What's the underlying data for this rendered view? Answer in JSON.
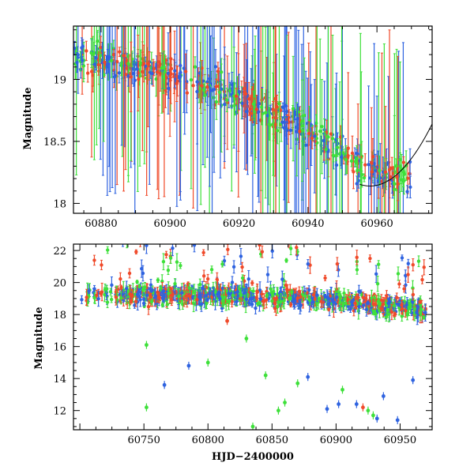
{
  "chart_data": [
    {
      "type": "scatter",
      "title": "",
      "xlabel": "",
      "ylabel": "Magnitude",
      "xlim": [
        60872,
        60976
      ],
      "ylim": [
        19.43,
        17.92
      ],
      "y_inverted": true,
      "xticks": [
        60880,
        60900,
        60920,
        60940,
        60960
      ],
      "xtick_labels": [
        "60880",
        "60900",
        "60920",
        "60940",
        "60960"
      ],
      "yticks": [
        18,
        18.5,
        19
      ],
      "ytick_labels": [
        "18",
        "18.5",
        "19"
      ],
      "grid": false,
      "error_bars": true,
      "series": [
        {
          "color": "#2f63e0",
          "role": "blue points"
        },
        {
          "color": "#3ee03a",
          "role": "green points"
        },
        {
          "color": "#f04a2a",
          "role": "red points"
        }
      ],
      "trend_points": [
        {
          "x": 60872,
          "y": 19.2
        },
        {
          "x": 60900,
          "y": 19.05
        },
        {
          "x": 60920,
          "y": 18.85
        },
        {
          "x": 60940,
          "y": 18.58
        },
        {
          "x": 60955,
          "y": 18.3
        },
        {
          "x": 60968,
          "y": 18.2
        }
      ]
    },
    {
      "type": "scatter",
      "title": "",
      "xlabel": "HJD−2400000",
      "ylabel": "Magnitude",
      "xlim": [
        60695,
        60975
      ],
      "ylim": [
        22.4,
        10.8
      ],
      "y_inverted": true,
      "xticks": [
        60750,
        60800,
        60850,
        60900,
        60950
      ],
      "xtick_labels": [
        "60750",
        "60800",
        "60850",
        "60900",
        "60950"
      ],
      "yticks": [
        12,
        14,
        16,
        18,
        20,
        22
      ],
      "ytick_labels": [
        "12",
        "14",
        "16",
        "18",
        "20",
        "22"
      ],
      "grid": false,
      "error_bars": true,
      "series": [
        {
          "color": "#2f63e0",
          "role": "blue points"
        },
        {
          "color": "#3ee03a",
          "role": "green points"
        },
        {
          "color": "#f04a2a",
          "role": "red points"
        }
      ],
      "baseline_points": [
        {
          "x": 60700,
          "y": 19.3
        },
        {
          "x": 60800,
          "y": 19.2
        },
        {
          "x": 60880,
          "y": 19.0
        },
        {
          "x": 60940,
          "y": 18.6
        },
        {
          "x": 60970,
          "y": 18.3
        }
      ],
      "outlier_points": [
        {
          "x": 60752,
          "y": 12.2,
          "color": "#3ee03a"
        },
        {
          "x": 60766,
          "y": 13.6,
          "color": "#2f63e0"
        },
        {
          "x": 60785,
          "y": 14.8,
          "color": "#2f63e0"
        },
        {
          "x": 60752,
          "y": 16.1,
          "color": "#3ee03a"
        },
        {
          "x": 60835,
          "y": 11.0,
          "color": "#3ee03a"
        },
        {
          "x": 60845,
          "y": 14.2,
          "color": "#3ee03a"
        },
        {
          "x": 60855,
          "y": 12.0,
          "color": "#3ee03a"
        },
        {
          "x": 60860,
          "y": 12.5,
          "color": "#3ee03a"
        },
        {
          "x": 60870,
          "y": 13.7,
          "color": "#3ee03a"
        },
        {
          "x": 60878,
          "y": 14.1,
          "color": "#2f63e0"
        },
        {
          "x": 60893,
          "y": 12.1,
          "color": "#2f63e0"
        },
        {
          "x": 60902,
          "y": 12.4,
          "color": "#2f63e0"
        },
        {
          "x": 60905,
          "y": 13.3,
          "color": "#3ee03a"
        },
        {
          "x": 60916,
          "y": 12.4,
          "color": "#2f63e0"
        },
        {
          "x": 60925,
          "y": 12.0,
          "color": "#3ee03a"
        },
        {
          "x": 60929,
          "y": 11.7,
          "color": "#3ee03a"
        },
        {
          "x": 60932,
          "y": 11.5,
          "color": "#2f63e0"
        },
        {
          "x": 60937,
          "y": 12.9,
          "color": "#2f63e0"
        },
        {
          "x": 60948,
          "y": 11.4,
          "color": "#2f63e0"
        },
        {
          "x": 60960,
          "y": 13.9,
          "color": "#2f63e0"
        },
        {
          "x": 60921,
          "y": 12.2,
          "color": "#f04a2a"
        },
        {
          "x": 60800,
          "y": 15.0,
          "color": "#3ee03a"
        },
        {
          "x": 60815,
          "y": 17.6,
          "color": "#f04a2a"
        },
        {
          "x": 60830,
          "y": 16.5,
          "color": "#3ee03a"
        }
      ]
    }
  ]
}
